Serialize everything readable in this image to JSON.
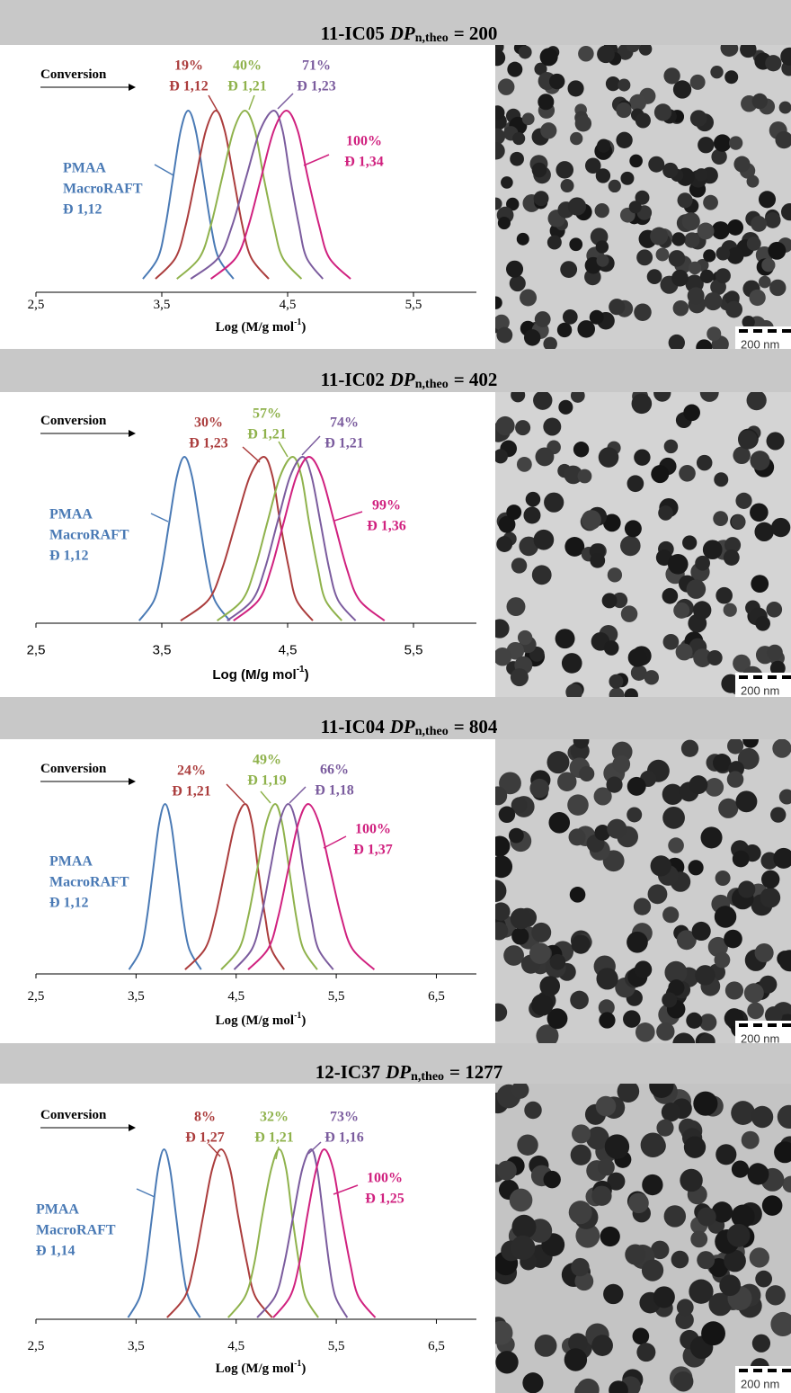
{
  "chart_data": [
    {
      "type": "line",
      "title": {
        "code": "11-IC05",
        "symbol": "DP",
        "subscript": "n,theo",
        "value": "= 200"
      },
      "arrow_label": "Conversion",
      "xlabel": {
        "text": "Log (M/g mol",
        "sup": "-1",
        "close": ")"
      },
      "tick_font": "serif",
      "xlim": [
        2.5,
        6.0
      ],
      "xticks": [
        {
          "value": 2.5,
          "label": "2,5"
        },
        {
          "value": 3.5,
          "label": "3,5"
        },
        {
          "value": 4.5,
          "label": "4,5"
        },
        {
          "value": 5.5,
          "label": "5,5"
        }
      ],
      "ylim": [
        0,
        1
      ],
      "scale_bar": "200 nm",
      "series": [
        {
          "label": [
            "PMAA",
            "MacroRAFT",
            "Đ 1,12"
          ],
          "color": "#4a7ab5",
          "x": [
            3.35,
            3.47,
            3.53,
            3.59,
            3.65,
            3.71,
            3.77,
            3.83,
            3.89,
            3.95,
            4.07
          ],
          "values": [
            0.01,
            0.135,
            0.325,
            0.607,
            0.882,
            1,
            0.882,
            0.607,
            0.325,
            0.135,
            0.01
          ]
        },
        {
          "label": [
            "19%",
            "Đ 1,12"
          ],
          "color": "#ab3d3d",
          "x": [
            3.45,
            3.61,
            3.69,
            3.77,
            3.85,
            3.93,
            4.0,
            4.07,
            4.14,
            4.21,
            4.35
          ],
          "values": [
            0.01,
            0.135,
            0.325,
            0.607,
            0.882,
            1,
            0.882,
            0.607,
            0.325,
            0.135,
            0.01
          ]
        },
        {
          "label": [
            "40%",
            "Đ 1,21"
          ],
          "color": "#8fb24c",
          "x": [
            3.62,
            3.8,
            3.89,
            3.98,
            4.07,
            4.16,
            4.24,
            4.31,
            4.39,
            4.46,
            4.61
          ],
          "values": [
            0.01,
            0.135,
            0.325,
            0.607,
            0.882,
            1,
            0.882,
            0.607,
            0.325,
            0.135,
            0.01
          ]
        },
        {
          "label": [
            "71%",
            "Đ 1,23"
          ],
          "color": "#7b5c9e",
          "x": [
            3.73,
            3.95,
            4.06,
            4.17,
            4.28,
            4.39,
            4.46,
            4.52,
            4.59,
            4.65,
            4.78
          ],
          "values": [
            0.01,
            0.135,
            0.325,
            0.607,
            0.882,
            1,
            0.882,
            0.607,
            0.325,
            0.135,
            0.01
          ]
        },
        {
          "label": [
            "100%",
            "Đ 1,34"
          ],
          "color": "#d0217f",
          "x": [
            3.89,
            4.09,
            4.19,
            4.29,
            4.39,
            4.49,
            4.58,
            4.66,
            4.75,
            4.83,
            5.0
          ],
          "values": [
            0.01,
            0.135,
            0.325,
            0.607,
            0.882,
            1,
            0.882,
            0.607,
            0.325,
            0.135,
            0.01
          ]
        }
      ]
    },
    {
      "type": "line",
      "title": {
        "code": "11-IC02",
        "symbol": "DP",
        "subscript": "n,theo",
        "value": "= 402"
      },
      "arrow_label": "Conversion",
      "xlabel": {
        "text": "Log (M/g mol",
        "sup": "-1",
        "close": ")"
      },
      "tick_font": "sans",
      "xlim": [
        2.5,
        6.0
      ],
      "xticks": [
        {
          "value": 2.5,
          "label": "2,5"
        },
        {
          "value": 3.5,
          "label": "3,5"
        },
        {
          "value": 4.5,
          "label": "4,5"
        },
        {
          "value": 5.5,
          "label": "5,5"
        }
      ],
      "ylim": [
        0,
        1
      ],
      "scale_bar": "200 nm",
      "series": [
        {
          "label": [
            "PMAA",
            "MacroRAFT",
            "Đ 1,12"
          ],
          "color": "#4a7ab5",
          "x": [
            3.32,
            3.44,
            3.5,
            3.56,
            3.62,
            3.68,
            3.74,
            3.8,
            3.86,
            3.92,
            4.04
          ],
          "values": [
            0.01,
            0.135,
            0.325,
            0.607,
            0.882,
            1,
            0.882,
            0.607,
            0.325,
            0.135,
            0.01
          ]
        },
        {
          "label": [
            "30%",
            "Đ 1,23"
          ],
          "color": "#ab3d3d",
          "x": [
            3.65,
            3.87,
            3.98,
            4.09,
            4.2,
            4.31,
            4.38,
            4.44,
            4.51,
            4.57,
            4.7
          ],
          "values": [
            0.01,
            0.135,
            0.325,
            0.607,
            0.882,
            1,
            0.882,
            0.607,
            0.325,
            0.135,
            0.01
          ]
        },
        {
          "label": [
            "57%",
            "Đ 1,21"
          ],
          "color": "#8fb24c",
          "x": [
            3.94,
            4.14,
            4.24,
            4.34,
            4.44,
            4.54,
            4.61,
            4.67,
            4.74,
            4.8,
            4.93
          ],
          "values": [
            0.01,
            0.135,
            0.325,
            0.607,
            0.882,
            1,
            0.882,
            0.607,
            0.325,
            0.135,
            0.01
          ]
        },
        {
          "label": [
            "74%",
            "Đ 1,21"
          ],
          "color": "#7b5c9e",
          "x": [
            4.02,
            4.22,
            4.32,
            4.42,
            4.52,
            4.62,
            4.69,
            4.76,
            4.83,
            4.9,
            5.04
          ],
          "values": [
            0.01,
            0.135,
            0.325,
            0.607,
            0.882,
            1,
            0.882,
            0.607,
            0.325,
            0.135,
            0.01
          ]
        },
        {
          "label": [
            "99%",
            "Đ 1,36"
          ],
          "color": "#d0217f",
          "x": [
            4.07,
            4.27,
            4.37,
            4.47,
            4.57,
            4.67,
            4.77,
            4.87,
            4.97,
            5.07,
            5.27
          ],
          "values": [
            0.01,
            0.135,
            0.325,
            0.607,
            0.882,
            1,
            0.882,
            0.607,
            0.325,
            0.135,
            0.01
          ]
        }
      ]
    },
    {
      "type": "line",
      "title": {
        "code": "11-IC04",
        "symbol": "DP",
        "subscript": "n,theo",
        "value": "= 804"
      },
      "arrow_label": "Conversion",
      "xlabel": {
        "text": "Log (M/g mol",
        "sup": "-1",
        "close": ")"
      },
      "tick_font": "serif",
      "xlim": [
        2.5,
        6.9
      ],
      "xticks": [
        {
          "value": 2.5,
          "label": "2,5"
        },
        {
          "value": 3.5,
          "label": "3,5"
        },
        {
          "value": 4.5,
          "label": "4,5"
        },
        {
          "value": 5.5,
          "label": "5,5"
        },
        {
          "value": 6.5,
          "label": "6,5"
        }
      ],
      "ylim": [
        0,
        1
      ],
      "scale_bar": "200 nm",
      "series": [
        {
          "label": [
            "PMAA",
            "MacroRAFT",
            "Đ 1,12"
          ],
          "color": "#4a7ab5",
          "x": [
            3.43,
            3.55,
            3.61,
            3.67,
            3.73,
            3.79,
            3.85,
            3.91,
            3.97,
            4.03,
            4.15
          ],
          "values": [
            0.01,
            0.135,
            0.325,
            0.607,
            0.882,
            1,
            0.882,
            0.607,
            0.325,
            0.135,
            0.01
          ]
        },
        {
          "label": [
            "24%",
            "Đ 1,21"
          ],
          "color": "#ab3d3d",
          "x": [
            3.99,
            4.19,
            4.29,
            4.39,
            4.49,
            4.59,
            4.66,
            4.72,
            4.79,
            4.85,
            4.98
          ],
          "values": [
            0.01,
            0.135,
            0.325,
            0.607,
            0.882,
            1,
            0.882,
            0.607,
            0.325,
            0.135,
            0.01
          ]
        },
        {
          "label": [
            "49%",
            "Đ 1,19"
          ],
          "color": "#8fb24c",
          "x": [
            4.35,
            4.53,
            4.62,
            4.71,
            4.8,
            4.89,
            4.96,
            5.03,
            5.1,
            5.17,
            5.31
          ],
          "values": [
            0.01,
            0.135,
            0.325,
            0.607,
            0.882,
            1,
            0.882,
            0.607,
            0.325,
            0.135,
            0.01
          ]
        },
        {
          "label": [
            "66%",
            "Đ 1,18"
          ],
          "color": "#7b5c9e",
          "x": [
            4.48,
            4.66,
            4.75,
            4.84,
            4.93,
            5.02,
            5.1,
            5.17,
            5.25,
            5.32,
            5.47
          ],
          "values": [
            0.01,
            0.135,
            0.325,
            0.607,
            0.882,
            1,
            0.882,
            0.607,
            0.325,
            0.135,
            0.01
          ]
        },
        {
          "label": [
            "100%",
            "Đ 1,37"
          ],
          "color": "#d0217f",
          "x": [
            4.62,
            4.82,
            4.92,
            5.02,
            5.12,
            5.22,
            5.33,
            5.44,
            5.55,
            5.66,
            5.88
          ],
          "values": [
            0.01,
            0.135,
            0.325,
            0.607,
            0.882,
            1,
            0.882,
            0.607,
            0.325,
            0.135,
            0.01
          ]
        }
      ]
    },
    {
      "type": "line",
      "title": {
        "code": "12-IC37",
        "symbol": "DP",
        "subscript": "n,theo",
        "value": "= 1277"
      },
      "arrow_label": "Conversion",
      "xlabel": {
        "text": "Log (M/g mol",
        "sup": "-1",
        "close": ")"
      },
      "tick_font": "serif",
      "xlim": [
        2.5,
        6.9
      ],
      "xticks": [
        {
          "value": 2.5,
          "label": "2,5"
        },
        {
          "value": 3.5,
          "label": "3,5"
        },
        {
          "value": 4.5,
          "label": "4,5"
        },
        {
          "value": 5.5,
          "label": "5,5"
        },
        {
          "value": 6.5,
          "label": "6,5"
        }
      ],
      "ylim": [
        0,
        1
      ],
      "scale_bar": "200 nm",
      "series": [
        {
          "label": [
            "PMAA",
            "MacroRAFT",
            "Đ 1,14"
          ],
          "color": "#4a7ab5",
          "x": [
            3.42,
            3.54,
            3.6,
            3.66,
            3.72,
            3.78,
            3.84,
            3.9,
            3.96,
            4.02,
            4.14
          ],
          "values": [
            0.01,
            0.135,
            0.325,
            0.607,
            0.882,
            1,
            0.882,
            0.607,
            0.325,
            0.135,
            0.01
          ]
        },
        {
          "label": [
            "8%",
            "Đ 1,27"
          ],
          "color": "#ab3d3d",
          "x": [
            3.81,
            3.99,
            4.08,
            4.17,
            4.26,
            4.35,
            4.44,
            4.52,
            4.61,
            4.69,
            4.86
          ],
          "values": [
            0.01,
            0.135,
            0.325,
            0.607,
            0.882,
            1,
            0.882,
            0.607,
            0.325,
            0.135,
            0.01
          ]
        },
        {
          "label": [
            "32%",
            "Đ 1,21"
          ],
          "color": "#8fb24c",
          "x": [
            4.42,
            4.59,
            4.68,
            4.76,
            4.85,
            4.93,
            5.0,
            5.06,
            5.13,
            5.19,
            5.32
          ],
          "values": [
            0.01,
            0.135,
            0.325,
            0.607,
            0.882,
            1,
            0.882,
            0.607,
            0.325,
            0.135,
            0.01
          ]
        },
        {
          "label": [
            "73%",
            "Đ 1,16"
          ],
          "color": "#7b5c9e",
          "x": [
            4.71,
            4.89,
            4.98,
            5.07,
            5.16,
            5.25,
            5.31,
            5.37,
            5.43,
            5.49,
            5.61
          ],
          "values": [
            0.01,
            0.135,
            0.325,
            0.607,
            0.882,
            1,
            0.882,
            0.607,
            0.325,
            0.135,
            0.01
          ]
        },
        {
          "label": [
            "100%",
            "Đ 1,25"
          ],
          "color": "#d0217f",
          "x": [
            4.87,
            5.04,
            5.13,
            5.21,
            5.3,
            5.38,
            5.47,
            5.55,
            5.64,
            5.72,
            5.89
          ],
          "values": [
            0.01,
            0.135,
            0.325,
            0.607,
            0.882,
            1,
            0.882,
            0.607,
            0.325,
            0.135,
            0.01
          ]
        }
      ]
    }
  ]
}
